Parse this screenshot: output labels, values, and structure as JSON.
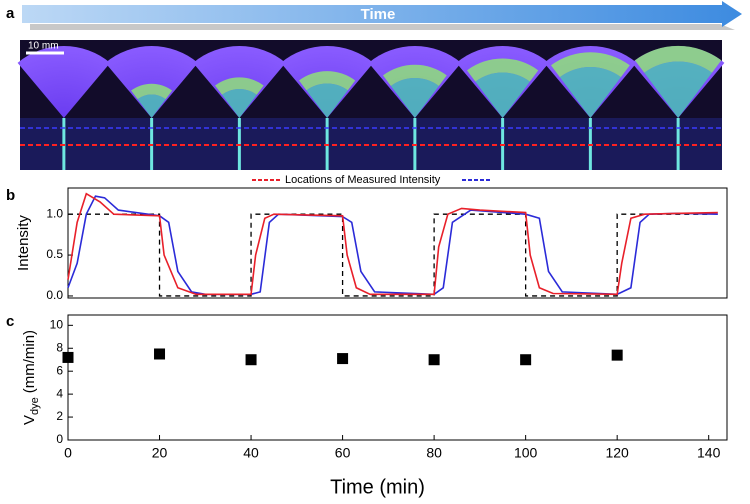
{
  "header": {
    "panel_labels": [
      "a",
      "b",
      "c"
    ],
    "arrow_label": "Time",
    "scale_bar": "10 mm",
    "legend_text": "Locations of Measured Intensity"
  },
  "chart_data": [
    {
      "type": "line",
      "ylabel": "Intensity",
      "xlim": [
        0,
        144
      ],
      "ylim": [
        -0.025,
        1.32
      ],
      "yticks": [
        {
          "value": 0,
          "label": "0.0"
        },
        0.5,
        {
          "value": 1,
          "label": "1.0"
        }
      ],
      "series": [
        {
          "color": "#000000",
          "style": "dashed",
          "x": [
            0,
            20,
            20,
            40,
            40,
            60,
            60,
            80,
            80,
            100,
            100,
            120,
            120,
            140
          ],
          "values": [
            1,
            1,
            0,
            0,
            1,
            1,
            0,
            0,
            1,
            1,
            0,
            0,
            1,
            1
          ]
        },
        {
          "color": "#2b2bd8",
          "style": "solid",
          "x": [
            0,
            2,
            4,
            6,
            8,
            11,
            20,
            22,
            24,
            27,
            30,
            40,
            42,
            44,
            46,
            60,
            62,
            64,
            67,
            80,
            82,
            84,
            88,
            100,
            103,
            105,
            108,
            120,
            123,
            125,
            127,
            134,
            142
          ],
          "values": [
            0.1,
            0.4,
            1.0,
            1.22,
            1.2,
            1.05,
            0.98,
            0.9,
            0.3,
            0.05,
            0.02,
            0.02,
            0.05,
            0.9,
            1.0,
            0.97,
            0.9,
            0.3,
            0.05,
            0.02,
            0.1,
            0.9,
            1.05,
            1.0,
            0.95,
            0.3,
            0.05,
            0.02,
            0.1,
            0.9,
            1.0,
            1.01,
            1.0
          ]
        },
        {
          "color": "#e8202a",
          "style": "solid",
          "x": [
            0,
            2,
            4,
            7,
            10,
            20,
            21,
            24,
            28,
            40,
            41,
            43,
            45,
            60,
            61,
            63,
            66,
            80,
            81,
            83,
            86,
            90,
            100,
            101,
            103,
            106,
            120,
            121,
            123,
            126,
            134,
            142
          ],
          "values": [
            0.2,
            0.9,
            1.25,
            1.15,
            1.0,
            0.98,
            0.5,
            0.1,
            0.02,
            0.02,
            0.5,
            0.95,
            1.0,
            0.98,
            0.5,
            0.1,
            0.02,
            0.02,
            0.6,
            1.0,
            1.07,
            1.05,
            1.02,
            0.5,
            0.1,
            0.03,
            0.02,
            0.4,
            0.95,
            1.0,
            1.01,
            1.02
          ]
        }
      ]
    },
    {
      "type": "scatter",
      "ylabel": [
        "V",
        "dye",
        "(mm/min)"
      ],
      "xlabel": "Time (min)",
      "xlim": [
        0,
        144
      ],
      "ylim": [
        0,
        10.9
      ],
      "xticks": [
        0,
        20,
        40,
        60,
        80,
        100,
        120,
        140
      ],
      "yticks": [
        0,
        2,
        4,
        6,
        8,
        10
      ],
      "color": "#000000",
      "marker": "square",
      "x": [
        0,
        20,
        40,
        60,
        80,
        100,
        120
      ],
      "values": [
        7.2,
        7.5,
        7.0,
        7.1,
        7.0,
        7.0,
        7.4
      ]
    }
  ]
}
